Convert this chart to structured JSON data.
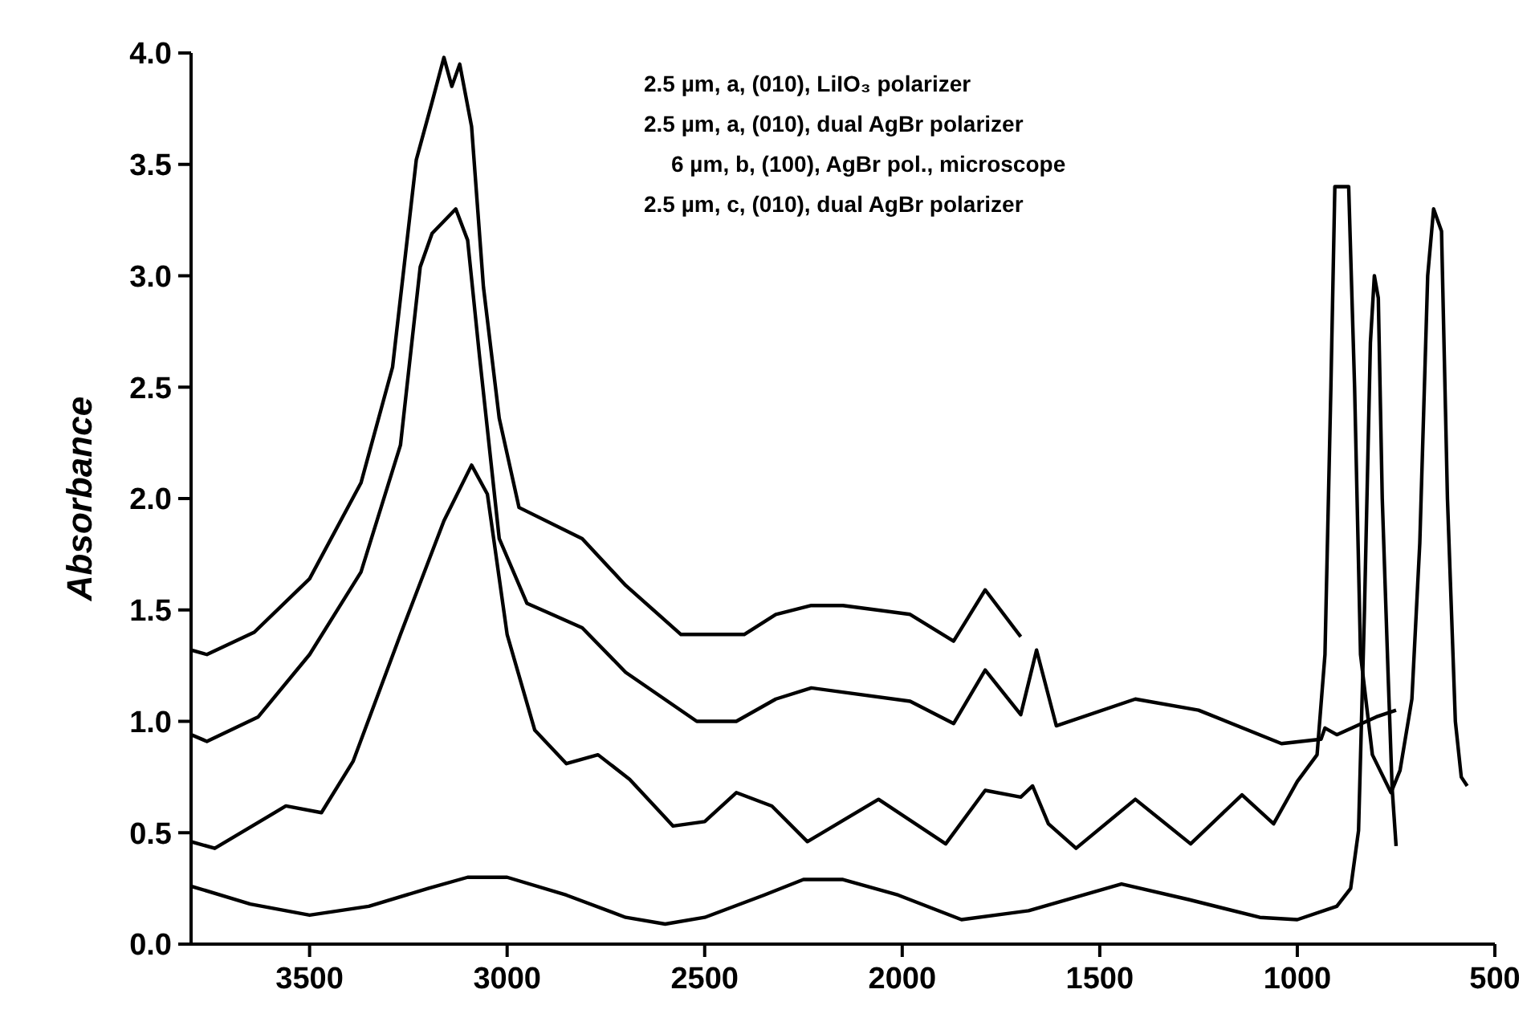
{
  "chart_data": {
    "type": "line",
    "ylabel": "Absorbance",
    "xlim": [
      3800,
      500
    ],
    "xticks": [
      3500,
      3000,
      2500,
      2000,
      1500,
      1000,
      500
    ],
    "ylim": [
      0,
      4
    ],
    "yticks": [
      {
        "value": 0,
        "label": "0.0"
      },
      0.5,
      {
        "value": 1,
        "label": "1.0"
      },
      1.5,
      {
        "value": 2,
        "label": "2.0"
      },
      2.5,
      {
        "value": 3,
        "label": "3.0"
      },
      3.5,
      {
        "value": 4,
        "label": "4.0"
      }
    ],
    "grid": false,
    "marker": "none",
    "line_style": "solid",
    "annotations": [
      "2.5 µm, a, (010), LiIO₃ polarizer",
      "2.5 µm, a, (010), dual AgBr polarizer",
      "6 µm, b, (100), AgBr pol., microscope",
      "2.5 µm, c, (010), dual AgBr polarizer"
    ],
    "series": [
      {
        "color": "#000000",
        "x": [
          3800,
          3760,
          3640,
          3500,
          3370,
          3290,
          3230,
          3190,
          3160,
          3140,
          3120,
          3090,
          3060,
          3020,
          2970,
          2810,
          2700,
          2560,
          2400,
          2320,
          2230,
          2150,
          1980,
          1870,
          1790,
          1700
        ],
        "values": [
          1.32,
          1.3,
          1.4,
          1.64,
          2.07,
          2.59,
          3.52,
          3.78,
          3.98,
          3.85,
          3.95,
          3.67,
          2.95,
          2.36,
          1.96,
          1.82,
          1.61,
          1.39,
          1.39,
          1.48,
          1.52,
          1.52,
          1.48,
          1.36,
          1.59,
          1.38
        ]
      },
      {
        "color": "#000000",
        "x": [
          3800,
          3760,
          3630,
          3500,
          3370,
          3270,
          3220,
          3190,
          3130,
          3100,
          3070,
          3020,
          2950,
          2810,
          2700,
          2520,
          2420,
          2320,
          2230,
          1980,
          1870,
          1790,
          1700,
          1660,
          1610,
          1410,
          1250,
          1040,
          940,
          930,
          900,
          800,
          750
        ],
        "values": [
          0.94,
          0.91,
          1.02,
          1.3,
          1.67,
          2.24,
          3.04,
          3.19,
          3.3,
          3.16,
          2.64,
          1.82,
          1.53,
          1.42,
          1.22,
          1.0,
          1.0,
          1.1,
          1.15,
          1.09,
          0.99,
          1.23,
          1.03,
          1.32,
          0.98,
          1.1,
          1.05,
          0.9,
          0.92,
          0.97,
          0.94,
          1.02,
          1.05
        ]
      },
      {
        "color": "#000000",
        "x": [
          3800,
          3740,
          3560,
          3470,
          3390,
          3270,
          3160,
          3090,
          3050,
          3000,
          2930,
          2850,
          2770,
          2690,
          2580,
          2500,
          2420,
          2330,
          2240,
          2060,
          1890,
          1790,
          1700,
          1670,
          1630,
          1560,
          1410,
          1270,
          1140,
          1060,
          1000,
          950,
          930,
          915,
          905,
          870,
          855,
          840,
          810,
          763,
          740,
          710,
          690,
          670,
          655,
          635,
          620,
          600,
          585,
          570
        ],
        "values": [
          0.46,
          0.43,
          0.62,
          0.59,
          0.82,
          1.39,
          1.9,
          2.15,
          2.02,
          1.39,
          0.96,
          0.81,
          0.85,
          0.74,
          0.53,
          0.55,
          0.68,
          0.62,
          0.46,
          0.65,
          0.45,
          0.69,
          0.66,
          0.71,
          0.54,
          0.43,
          0.65,
          0.45,
          0.67,
          0.54,
          0.73,
          0.85,
          1.3,
          2.5,
          3.4,
          3.4,
          2.5,
          1.3,
          0.85,
          0.68,
          0.78,
          1.1,
          1.8,
          3.0,
          3.3,
          3.2,
          2.0,
          1.0,
          0.75,
          0.71
        ]
      },
      {
        "color": "#000000",
        "x": [
          3800,
          3650,
          3500,
          3350,
          3200,
          3100,
          3000,
          2850,
          2700,
          2600,
          2500,
          2350,
          2250,
          2150,
          2010,
          1850,
          1680,
          1445,
          1275,
          1095,
          1000,
          900,
          865,
          845,
          830,
          815,
          805,
          795,
          785,
          770,
          760,
          750
        ],
        "values": [
          0.26,
          0.18,
          0.13,
          0.17,
          0.25,
          0.3,
          0.3,
          0.22,
          0.12,
          0.09,
          0.12,
          0.22,
          0.29,
          0.29,
          0.22,
          0.11,
          0.15,
          0.27,
          0.2,
          0.12,
          0.11,
          0.17,
          0.25,
          0.51,
          1.5,
          2.7,
          3.0,
          2.9,
          2.0,
          1.2,
          0.7,
          0.44
        ]
      }
    ]
  }
}
